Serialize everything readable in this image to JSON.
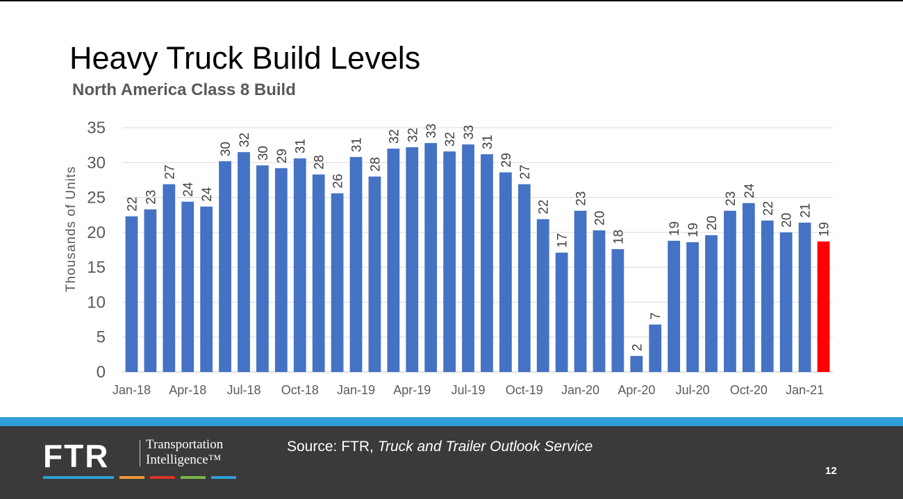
{
  "slide": {
    "title": "Heavy Truck Build Levels",
    "subtitle": "North America Class 8 Build",
    "page_number": "12"
  },
  "footer": {
    "logo_mark": "FTR",
    "logo_line1": "Transportation",
    "logo_line2": "Intelligence™",
    "source_prefix": "Source: FTR, ",
    "source_italic": "Truck and Trailer Outlook Service",
    "bar_color": "#2e9fd6",
    "background_color": "#3a3a3a",
    "stripe_colors": [
      "#2e9fd6",
      "#f29a3a",
      "#d9342b",
      "#7ab648",
      "#2e9fd6"
    ]
  },
  "chart_data": {
    "type": "bar",
    "ylabel": "Thousands of Units",
    "xlabel": "",
    "ylim": [
      0,
      35
    ],
    "yticks": [
      0,
      5,
      10,
      15,
      20,
      25,
      30,
      35
    ],
    "grid": true,
    "bar_color": "#4472c4",
    "highlight_color": "#ff0000",
    "highlight_index": 37,
    "x_tick_labels": [
      "Jan-18",
      "Apr-18",
      "Jul-18",
      "Oct-18",
      "Jan-19",
      "Apr-19",
      "Jul-19",
      "Oct-19",
      "Jan-20",
      "Apr-20",
      "Jul-20",
      "Oct-20",
      "Jan-21"
    ],
    "categories": [
      "Jan-18",
      "Feb-18",
      "Mar-18",
      "Apr-18",
      "May-18",
      "Jun-18",
      "Jul-18",
      "Aug-18",
      "Sep-18",
      "Oct-18",
      "Nov-18",
      "Dec-18",
      "Jan-19",
      "Feb-19",
      "Mar-19",
      "Apr-19",
      "May-19",
      "Jun-19",
      "Jul-19",
      "Aug-19",
      "Sep-19",
      "Oct-19",
      "Nov-19",
      "Dec-19",
      "Jan-20",
      "Feb-20",
      "Mar-20",
      "Apr-20",
      "May-20",
      "Jun-20",
      "Jul-20",
      "Aug-20",
      "Sep-20",
      "Oct-20",
      "Nov-20",
      "Dec-20",
      "Jan-21",
      "Feb-21"
    ],
    "values": [
      22.3,
      23.3,
      26.9,
      24.4,
      23.7,
      30.2,
      31.5,
      29.6,
      29.2,
      30.6,
      28.3,
      25.6,
      30.8,
      28.0,
      32.0,
      32.2,
      32.8,
      31.6,
      32.6,
      31.2,
      28.6,
      26.9,
      21.9,
      17.1,
      23.1,
      20.3,
      17.6,
      2.3,
      6.8,
      18.8,
      18.6,
      19.6,
      23.1,
      24.2,
      21.7,
      20.0,
      21.4,
      18.7
    ],
    "data_labels": [
      "22",
      "23",
      "27",
      "24",
      "24",
      "30",
      "32",
      "30",
      "29",
      "31",
      "28",
      "26",
      "31",
      "28",
      "32",
      "32",
      "33",
      "32",
      "33",
      "31",
      "29",
      "27",
      "22",
      "17",
      "23",
      "20",
      "18",
      "2",
      "7",
      "19",
      "19",
      "20",
      "23",
      "24",
      "22",
      "20",
      "21",
      "19"
    ]
  }
}
